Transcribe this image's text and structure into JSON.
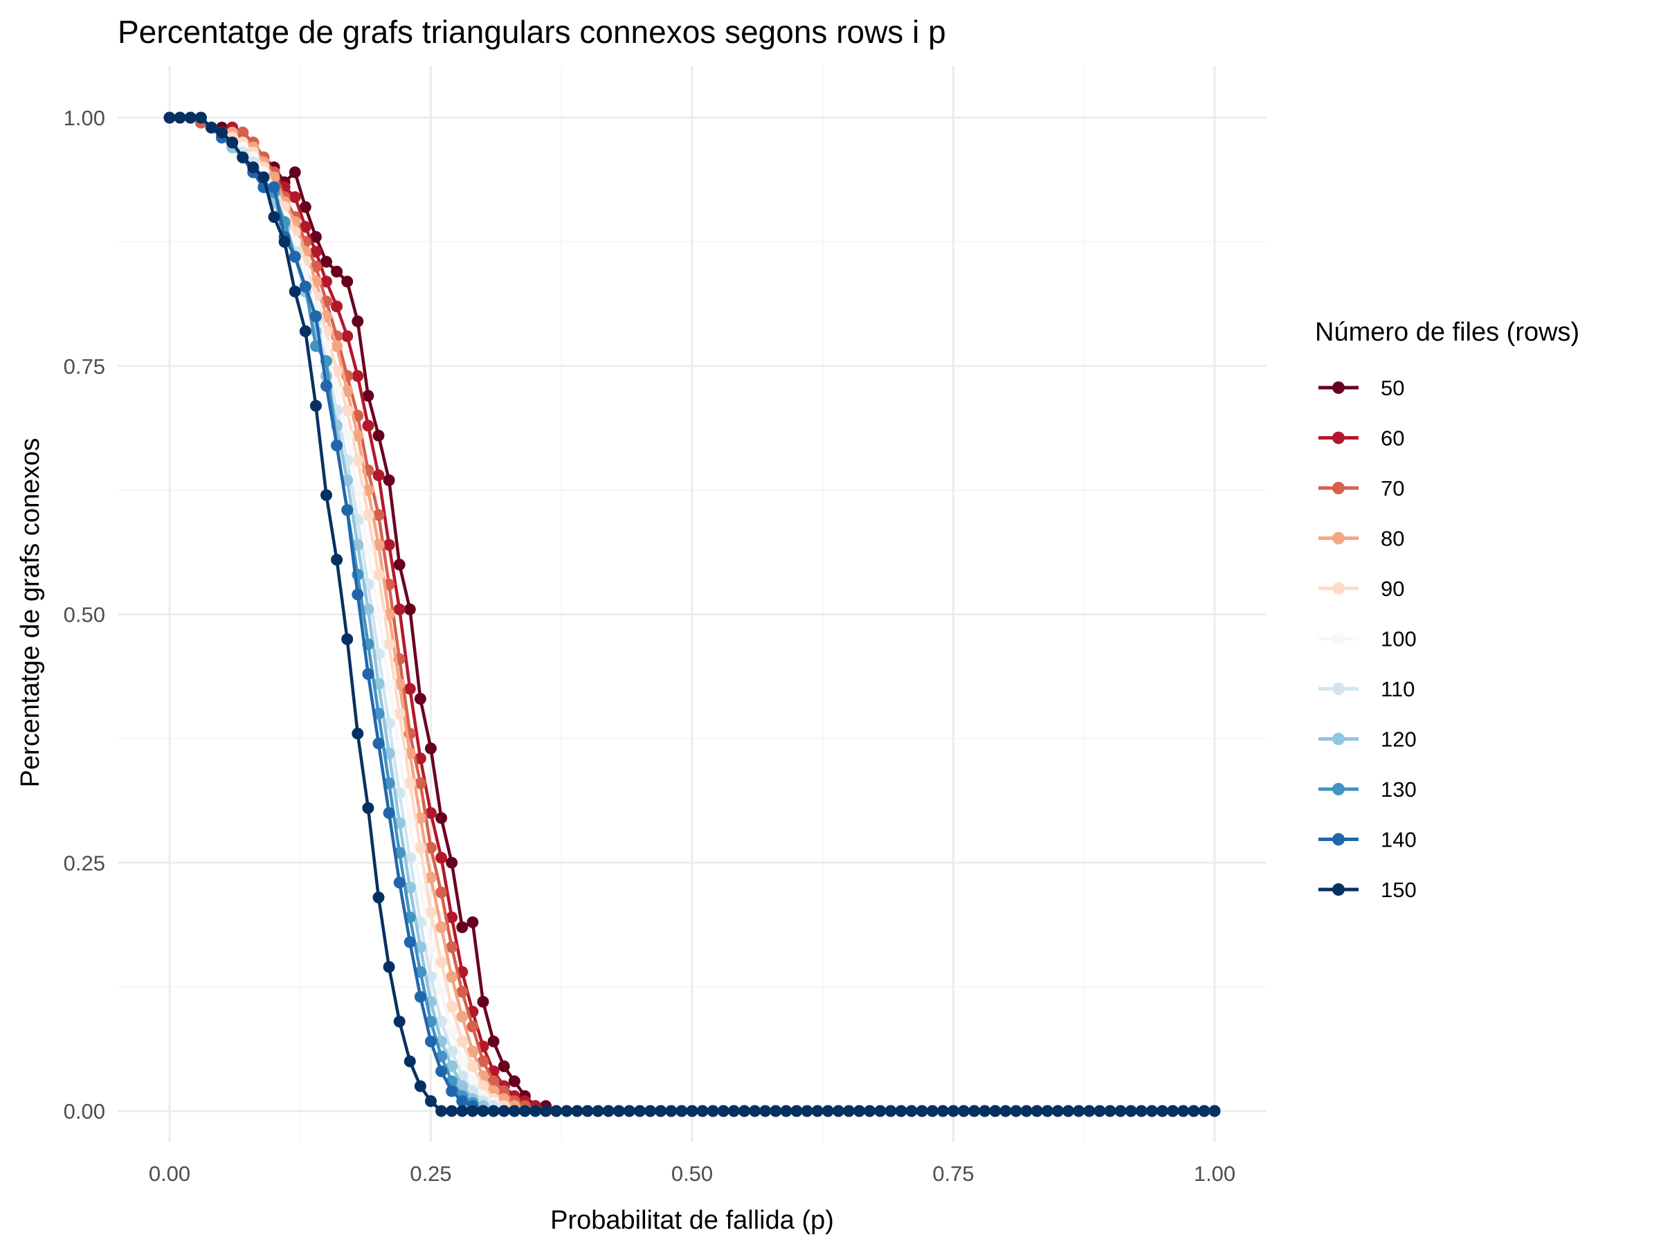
{
  "chart_data": {
    "type": "line",
    "title": "Percentatge de grafs triangulars connexos segons rows i p",
    "xlabel": "Probabilitat de fallida (p)",
    "ylabel": "Percentatge de grafs conexos",
    "xlim": [
      0,
      1
    ],
    "ylim": [
      0,
      1
    ],
    "x_ticks": [
      "0.00",
      "0.25",
      "0.50",
      "0.75",
      "1.00"
    ],
    "y_ticks": [
      "0.00",
      "0.25",
      "0.50",
      "0.75",
      "1.00"
    ],
    "grid": true,
    "legend_title": "Número de files (rows)",
    "legend_position": "right",
    "x": [
      0.0,
      0.01,
      0.02,
      0.03,
      0.04,
      0.05,
      0.06,
      0.07,
      0.08,
      0.09,
      0.1,
      0.11,
      0.12,
      0.13,
      0.14,
      0.15,
      0.16,
      0.17,
      0.18,
      0.19,
      0.2,
      0.21,
      0.22,
      0.23,
      0.24,
      0.25,
      0.26,
      0.27,
      0.28,
      0.29,
      0.3,
      0.31,
      0.32,
      0.33,
      0.34,
      0.35,
      0.36,
      0.37,
      0.38,
      0.39,
      0.4,
      0.41,
      0.42,
      0.43,
      0.44,
      0.45,
      0.46,
      0.47,
      0.48,
      0.49,
      0.5,
      0.51,
      0.52,
      0.53,
      0.54,
      0.55,
      0.56,
      0.57,
      0.58,
      0.59,
      0.6,
      0.61,
      0.62,
      0.63,
      0.64,
      0.65,
      0.66,
      0.67,
      0.68,
      0.69,
      0.7,
      0.71,
      0.72,
      0.73,
      0.74,
      0.75,
      0.76,
      0.77,
      0.78,
      0.79,
      0.8,
      0.81,
      0.82,
      0.83,
      0.84,
      0.85,
      0.86,
      0.87,
      0.88,
      0.89,
      0.9,
      0.91,
      0.92,
      0.93,
      0.94,
      0.95,
      0.96,
      0.97,
      0.98,
      0.99,
      1.0
    ],
    "series": [
      {
        "name": "50",
        "color": "#67001f",
        "values": [
          1.0,
          1.0,
          1.0,
          1.0,
          0.99,
          0.99,
          0.99,
          0.985,
          0.975,
          0.96,
          0.95,
          0.935,
          0.945,
          0.91,
          0.88,
          0.855,
          0.845,
          0.835,
          0.795,
          0.72,
          0.68,
          0.635,
          0.55,
          0.505,
          0.415,
          0.365,
          0.295,
          0.25,
          0.185,
          0.19,
          0.11,
          0.07,
          0.045,
          0.03,
          0.015,
          0.005,
          0.005,
          0.0,
          0.0,
          0.0,
          0.0,
          0.0,
          0.0,
          0.0,
          0.0,
          0.0,
          0.0,
          0.0,
          0.0,
          0.0,
          0.0,
          0.0,
          0.0,
          0.0,
          0.0,
          0.0,
          0.0,
          0.0,
          0.0,
          0.0,
          0.0,
          0.0,
          0.0,
          0.0,
          0.0,
          0.0,
          0.0,
          0.0,
          0.0,
          0.0,
          0.0,
          0.0,
          0.0,
          0.0,
          0.0,
          0.0,
          0.0,
          0.0,
          0.0,
          0.0,
          0.0,
          0.0,
          0.0,
          0.0,
          0.0,
          0.0,
          0.0,
          0.0,
          0.0,
          0.0,
          0.0,
          0.0,
          0.0,
          0.0,
          0.0,
          0.0,
          0.0,
          0.0,
          0.0,
          0.0,
          0.0
        ]
      },
      {
        "name": "60",
        "color": "#b2182b",
        "values": [
          1.0,
          1.0,
          1.0,
          1.0,
          0.99,
          0.98,
          0.99,
          0.98,
          0.97,
          0.955,
          0.945,
          0.93,
          0.92,
          0.89,
          0.865,
          0.835,
          0.81,
          0.78,
          0.74,
          0.69,
          0.64,
          0.57,
          0.505,
          0.425,
          0.355,
          0.3,
          0.255,
          0.195,
          0.14,
          0.1,
          0.065,
          0.04,
          0.025,
          0.015,
          0.01,
          0.005,
          0.0,
          0.0,
          0.0,
          0.0,
          0.0,
          0.0,
          0.0,
          0.0,
          0.0,
          0.0,
          0.0,
          0.0,
          0.0,
          0.0,
          0.0,
          0.0,
          0.0,
          0.0,
          0.0,
          0.0,
          0.0,
          0.0,
          0.0,
          0.0,
          0.0,
          0.0,
          0.0,
          0.0,
          0.0,
          0.0,
          0.0,
          0.0,
          0.0,
          0.0,
          0.0,
          0.0,
          0.0,
          0.0,
          0.0,
          0.0,
          0.0,
          0.0,
          0.0,
          0.0,
          0.0,
          0.0,
          0.0,
          0.0,
          0.0,
          0.0,
          0.0,
          0.0,
          0.0,
          0.0,
          0.0,
          0.0,
          0.0,
          0.0,
          0.0,
          0.0,
          0.0,
          0.0,
          0.0,
          0.0,
          0.0
        ]
      },
      {
        "name": "70",
        "color": "#d6604d",
        "values": [
          1.0,
          1.0,
          1.0,
          0.995,
          0.99,
          0.985,
          0.98,
          0.985,
          0.975,
          0.96,
          0.945,
          0.92,
          0.9,
          0.875,
          0.85,
          0.815,
          0.78,
          0.74,
          0.7,
          0.645,
          0.6,
          0.53,
          0.455,
          0.38,
          0.33,
          0.265,
          0.22,
          0.165,
          0.12,
          0.085,
          0.05,
          0.03,
          0.02,
          0.01,
          0.005,
          0.0,
          0.0,
          0.0,
          0.0,
          0.0,
          0.0,
          0.0,
          0.0,
          0.0,
          0.0,
          0.0,
          0.0,
          0.0,
          0.0,
          0.0,
          0.0,
          0.0,
          0.0,
          0.0,
          0.0,
          0.0,
          0.0,
          0.0,
          0.0,
          0.0,
          0.0,
          0.0,
          0.0,
          0.0,
          0.0,
          0.0,
          0.0,
          0.0,
          0.0,
          0.0,
          0.0,
          0.0,
          0.0,
          0.0,
          0.0,
          0.0,
          0.0,
          0.0,
          0.0,
          0.0,
          0.0,
          0.0,
          0.0,
          0.0,
          0.0,
          0.0,
          0.0,
          0.0,
          0.0,
          0.0,
          0.0,
          0.0,
          0.0,
          0.0,
          0.0,
          0.0,
          0.0,
          0.0,
          0.0,
          0.0,
          0.0
        ]
      },
      {
        "name": "80",
        "color": "#f4a582",
        "values": [
          1.0,
          1.0,
          1.0,
          1.0,
          0.99,
          0.985,
          0.985,
          0.975,
          0.97,
          0.955,
          0.94,
          0.915,
          0.895,
          0.865,
          0.835,
          0.8,
          0.77,
          0.725,
          0.68,
          0.625,
          0.57,
          0.5,
          0.43,
          0.36,
          0.295,
          0.235,
          0.185,
          0.135,
          0.095,
          0.06,
          0.035,
          0.02,
          0.012,
          0.005,
          0.0,
          0.0,
          0.0,
          0.0,
          0.0,
          0.0,
          0.0,
          0.0,
          0.0,
          0.0,
          0.0,
          0.0,
          0.0,
          0.0,
          0.0,
          0.0,
          0.0,
          0.0,
          0.0,
          0.0,
          0.0,
          0.0,
          0.0,
          0.0,
          0.0,
          0.0,
          0.0,
          0.0,
          0.0,
          0.0,
          0.0,
          0.0,
          0.0,
          0.0,
          0.0,
          0.0,
          0.0,
          0.0,
          0.0,
          0.0,
          0.0,
          0.0,
          0.0,
          0.0,
          0.0,
          0.0,
          0.0,
          0.0,
          0.0,
          0.0,
          0.0,
          0.0,
          0.0,
          0.0,
          0.0,
          0.0,
          0.0,
          0.0,
          0.0,
          0.0,
          0.0,
          0.0,
          0.0,
          0.0,
          0.0,
          0.0,
          0.0
        ]
      },
      {
        "name": "90",
        "color": "#fddbc7",
        "values": [
          1.0,
          1.0,
          1.0,
          1.0,
          0.99,
          0.985,
          0.98,
          0.975,
          0.965,
          0.95,
          0.93,
          0.91,
          0.885,
          0.855,
          0.82,
          0.785,
          0.745,
          0.705,
          0.655,
          0.6,
          0.54,
          0.47,
          0.4,
          0.33,
          0.265,
          0.2,
          0.15,
          0.105,
          0.07,
          0.045,
          0.025,
          0.012,
          0.005,
          0.0,
          0.0,
          0.0,
          0.0,
          0.0,
          0.0,
          0.0,
          0.0,
          0.0,
          0.0,
          0.0,
          0.0,
          0.0,
          0.0,
          0.0,
          0.0,
          0.0,
          0.0,
          0.0,
          0.0,
          0.0,
          0.0,
          0.0,
          0.0,
          0.0,
          0.0,
          0.0,
          0.0,
          0.0,
          0.0,
          0.0,
          0.0,
          0.0,
          0.0,
          0.0,
          0.0,
          0.0,
          0.0,
          0.0,
          0.0,
          0.0,
          0.0,
          0.0,
          0.0,
          0.0,
          0.0,
          0.0,
          0.0,
          0.0,
          0.0,
          0.0,
          0.0,
          0.0,
          0.0,
          0.0,
          0.0,
          0.0,
          0.0,
          0.0,
          0.0,
          0.0,
          0.0,
          0.0,
          0.0,
          0.0,
          0.0,
          0.0,
          0.0
        ]
      },
      {
        "name": "100",
        "color": "#f7f7f7",
        "values": [
          1.0,
          1.0,
          1.0,
          1.0,
          0.99,
          0.985,
          0.975,
          0.97,
          0.96,
          0.945,
          0.925,
          0.9,
          0.875,
          0.845,
          0.81,
          0.77,
          0.725,
          0.68,
          0.625,
          0.565,
          0.5,
          0.43,
          0.36,
          0.29,
          0.225,
          0.165,
          0.12,
          0.08,
          0.05,
          0.03,
          0.015,
          0.008,
          0.0,
          0.0,
          0.0,
          0.0,
          0.0,
          0.0,
          0.0,
          0.0,
          0.0,
          0.0,
          0.0,
          0.0,
          0.0,
          0.0,
          0.0,
          0.0,
          0.0,
          0.0,
          0.0,
          0.0,
          0.0,
          0.0,
          0.0,
          0.0,
          0.0,
          0.0,
          0.0,
          0.0,
          0.0,
          0.0,
          0.0,
          0.0,
          0.0,
          0.0,
          0.0,
          0.0,
          0.0,
          0.0,
          0.0,
          0.0,
          0.0,
          0.0,
          0.0,
          0.0,
          0.0,
          0.0,
          0.0,
          0.0,
          0.0,
          0.0,
          0.0,
          0.0,
          0.0,
          0.0,
          0.0,
          0.0,
          0.0,
          0.0,
          0.0,
          0.0,
          0.0,
          0.0,
          0.0,
          0.0,
          0.0,
          0.0,
          0.0,
          0.0,
          0.0
        ]
      },
      {
        "name": "110",
        "color": "#d1e5f0",
        "values": [
          1.0,
          1.0,
          1.0,
          1.0,
          0.99,
          0.985,
          0.975,
          0.965,
          0.955,
          0.94,
          0.92,
          0.895,
          0.865,
          0.83,
          0.795,
          0.755,
          0.705,
          0.655,
          0.595,
          0.53,
          0.46,
          0.39,
          0.32,
          0.255,
          0.19,
          0.135,
          0.09,
          0.06,
          0.035,
          0.02,
          0.01,
          0.005,
          0.0,
          0.0,
          0.0,
          0.0,
          0.0,
          0.0,
          0.0,
          0.0,
          0.0,
          0.0,
          0.0,
          0.0,
          0.0,
          0.0,
          0.0,
          0.0,
          0.0,
          0.0,
          0.0,
          0.0,
          0.0,
          0.0,
          0.0,
          0.0,
          0.0,
          0.0,
          0.0,
          0.0,
          0.0,
          0.0,
          0.0,
          0.0,
          0.0,
          0.0,
          0.0,
          0.0,
          0.0,
          0.0,
          0.0,
          0.0,
          0.0,
          0.0,
          0.0,
          0.0,
          0.0,
          0.0,
          0.0,
          0.0,
          0.0,
          0.0,
          0.0,
          0.0,
          0.0,
          0.0,
          0.0,
          0.0,
          0.0,
          0.0,
          0.0,
          0.0,
          0.0,
          0.0,
          0.0,
          0.0,
          0.0,
          0.0,
          0.0,
          0.0,
          0.0
        ]
      },
      {
        "name": "120",
        "color": "#92c5de",
        "values": [
          1.0,
          1.0,
          1.0,
          1.0,
          0.99,
          0.98,
          0.97,
          0.96,
          0.95,
          0.93,
          0.915,
          0.89,
          0.86,
          0.825,
          0.785,
          0.74,
          0.69,
          0.635,
          0.57,
          0.505,
          0.43,
          0.36,
          0.29,
          0.225,
          0.165,
          0.11,
          0.07,
          0.045,
          0.025,
          0.012,
          0.005,
          0.0,
          0.0,
          0.0,
          0.0,
          0.0,
          0.0,
          0.0,
          0.0,
          0.0,
          0.0,
          0.0,
          0.0,
          0.0,
          0.0,
          0.0,
          0.0,
          0.0,
          0.0,
          0.0,
          0.0,
          0.0,
          0.0,
          0.0,
          0.0,
          0.0,
          0.0,
          0.0,
          0.0,
          0.0,
          0.0,
          0.0,
          0.0,
          0.0,
          0.0,
          0.0,
          0.0,
          0.0,
          0.0,
          0.0,
          0.0,
          0.0,
          0.0,
          0.0,
          0.0,
          0.0,
          0.0,
          0.0,
          0.0,
          0.0,
          0.0,
          0.0,
          0.0,
          0.0,
          0.0,
          0.0,
          0.0,
          0.0,
          0.0,
          0.0,
          0.0,
          0.0,
          0.0,
          0.0,
          0.0,
          0.0,
          0.0,
          0.0,
          0.0,
          0.0,
          0.0
        ]
      },
      {
        "name": "130",
        "color": "#4393c3",
        "values": [
          1.0,
          1.0,
          1.0,
          1.0,
          0.99,
          0.98,
          0.975,
          0.96,
          0.945,
          0.93,
          0.925,
          0.895,
          0.86,
          0.83,
          0.77,
          0.755,
          0.67,
          0.605,
          0.54,
          0.47,
          0.4,
          0.33,
          0.26,
          0.195,
          0.14,
          0.09,
          0.055,
          0.03,
          0.015,
          0.008,
          0.0,
          0.0,
          0.0,
          0.0,
          0.0,
          0.0,
          0.0,
          0.0,
          0.0,
          0.0,
          0.0,
          0.0,
          0.0,
          0.0,
          0.0,
          0.0,
          0.0,
          0.0,
          0.0,
          0.0,
          0.0,
          0.0,
          0.0,
          0.0,
          0.0,
          0.0,
          0.0,
          0.0,
          0.0,
          0.0,
          0.0,
          0.0,
          0.0,
          0.0,
          0.0,
          0.0,
          0.0,
          0.0,
          0.0,
          0.0,
          0.0,
          0.0,
          0.0,
          0.0,
          0.0,
          0.0,
          0.0,
          0.0,
          0.0,
          0.0,
          0.0,
          0.0,
          0.0,
          0.0,
          0.0,
          0.0,
          0.0,
          0.0,
          0.0,
          0.0,
          0.0,
          0.0,
          0.0,
          0.0,
          0.0,
          0.0,
          0.0,
          0.0,
          0.0,
          0.0,
          0.0
        ]
      },
      {
        "name": "140",
        "color": "#2166ac",
        "values": [
          1.0,
          1.0,
          1.0,
          1.0,
          0.99,
          0.98,
          0.975,
          0.96,
          0.945,
          0.93,
          0.93,
          0.88,
          0.86,
          0.83,
          0.8,
          0.73,
          0.67,
          0.605,
          0.52,
          0.44,
          0.37,
          0.3,
          0.23,
          0.17,
          0.115,
          0.07,
          0.04,
          0.02,
          0.01,
          0.005,
          0.0,
          0.0,
          0.0,
          0.0,
          0.0,
          0.0,
          0.0,
          0.0,
          0.0,
          0.0,
          0.0,
          0.0,
          0.0,
          0.0,
          0.0,
          0.0,
          0.0,
          0.0,
          0.0,
          0.0,
          0.0,
          0.0,
          0.0,
          0.0,
          0.0,
          0.0,
          0.0,
          0.0,
          0.0,
          0.0,
          0.0,
          0.0,
          0.0,
          0.0,
          0.0,
          0.0,
          0.0,
          0.0,
          0.0,
          0.0,
          0.0,
          0.0,
          0.0,
          0.0,
          0.0,
          0.0,
          0.0,
          0.0,
          0.0,
          0.0,
          0.0,
          0.0,
          0.0,
          0.0,
          0.0,
          0.0,
          0.0,
          0.0,
          0.0,
          0.0,
          0.0,
          0.0,
          0.0,
          0.0,
          0.0,
          0.0,
          0.0,
          0.0,
          0.0,
          0.0,
          0.0
        ]
      },
      {
        "name": "150",
        "color": "#053061",
        "values": [
          1.0,
          1.0,
          1.0,
          1.0,
          0.99,
          0.985,
          0.975,
          0.96,
          0.95,
          0.94,
          0.9,
          0.875,
          0.825,
          0.785,
          0.71,
          0.62,
          0.555,
          0.475,
          0.38,
          0.305,
          0.215,
          0.145,
          0.09,
          0.05,
          0.025,
          0.01,
          0.0,
          0.0,
          0.0,
          0.0,
          0.0,
          0.0,
          0.0,
          0.0,
          0.0,
          0.0,
          0.0,
          0.0,
          0.0,
          0.0,
          0.0,
          0.0,
          0.0,
          0.0,
          0.0,
          0.0,
          0.0,
          0.0,
          0.0,
          0.0,
          0.0,
          0.0,
          0.0,
          0.0,
          0.0,
          0.0,
          0.0,
          0.0,
          0.0,
          0.0,
          0.0,
          0.0,
          0.0,
          0.0,
          0.0,
          0.0,
          0.0,
          0.0,
          0.0,
          0.0,
          0.0,
          0.0,
          0.0,
          0.0,
          0.0,
          0.0,
          0.0,
          0.0,
          0.0,
          0.0,
          0.0,
          0.0,
          0.0,
          0.0,
          0.0,
          0.0,
          0.0,
          0.0,
          0.0,
          0.0,
          0.0,
          0.0,
          0.0,
          0.0,
          0.0,
          0.0,
          0.0,
          0.0,
          0.0,
          0.0,
          0.0
        ]
      }
    ]
  }
}
